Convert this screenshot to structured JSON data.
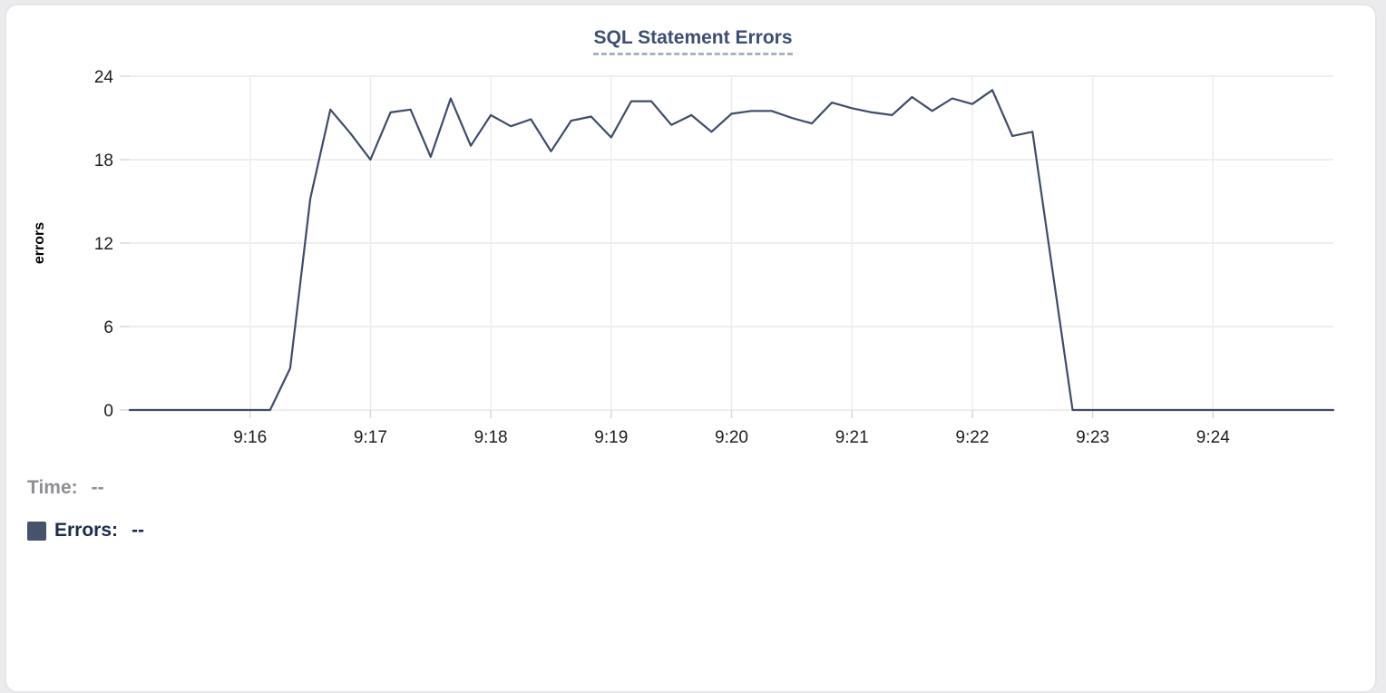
{
  "page": {
    "background": "#ebebee"
  },
  "card": {
    "background": "#ffffff",
    "border_color": "#e5e5e8"
  },
  "chart_data": {
    "type": "line",
    "title": "SQL Statement Errors",
    "xlabel": "",
    "ylabel": "errors",
    "ylim": [
      0,
      24
    ],
    "y_ticks": [
      0,
      6,
      12,
      18,
      24
    ],
    "x_start": "9:15:00",
    "x_end": "9:25:00",
    "x_interval_seconds": 10,
    "x_tick_labels": [
      "9:16",
      "9:17",
      "9:18",
      "9:19",
      "9:20",
      "9:21",
      "9:22",
      "9:23",
      "9:24"
    ],
    "grid": true,
    "legend_position": "none",
    "series": [
      {
        "name": "Errors",
        "color": "#3e4c6a",
        "values": [
          0,
          0,
          0,
          0,
          0,
          0,
          0,
          0,
          3,
          15.2,
          21.6,
          19.9,
          18,
          21.4,
          21.6,
          18.2,
          22.4,
          19,
          21.2,
          20.4,
          20.9,
          18.6,
          20.8,
          21.1,
          19.6,
          22.2,
          22.2,
          20.5,
          21.2,
          20,
          21.3,
          21.5,
          21.5,
          21,
          20.6,
          22.1,
          21.7,
          21.4,
          21.2,
          22.5,
          21.5,
          22.4,
          22,
          23,
          19.7,
          20,
          10,
          0,
          0,
          0,
          0,
          0,
          0,
          0,
          0,
          0,
          0,
          0,
          0,
          0,
          0
        ]
      }
    ]
  },
  "readout": {
    "time_label": "Time:",
    "time_value": "--",
    "errors_label": "Errors:",
    "errors_value": "--",
    "swatch_color": "#46536b"
  },
  "styles": {
    "title_color": "#3d4e71",
    "title_underline_color": "#a8b3cb",
    "axis_text_color": "#1d1d1f",
    "h_grid_color": "#e9e9ec",
    "v_grid_color": "#ededf0",
    "tick_color": "#d9d9dd",
    "time_text_color": "#8e8e93",
    "errors_text_color": "#1b2a4e",
    "line_color": "#3e4c6a"
  }
}
